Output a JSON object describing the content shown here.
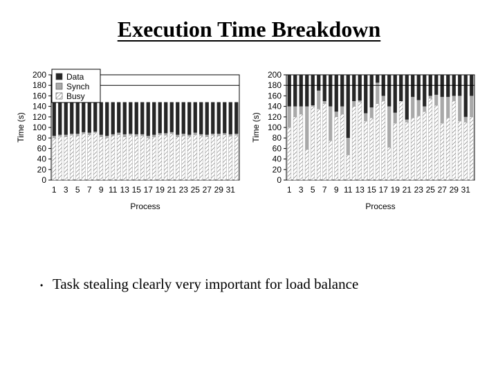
{
  "slide": {
    "title": "Execution Time Breakdown",
    "bullet": "Task stealing clearly very important for load balance",
    "bullet_marker": "•"
  },
  "chart_data": [
    {
      "type": "bar",
      "stacked": true,
      "ylabel": "Time (s)",
      "xlabel": "Process",
      "ylim": [
        0,
        200
      ],
      "yticks": [
        0,
        20,
        40,
        60,
        80,
        100,
        120,
        140,
        160,
        180,
        200
      ],
      "x_tick_labels": [
        "1",
        "3",
        "5",
        "7",
        "9",
        "11",
        "13",
        "15",
        "17",
        "19",
        "21",
        "23",
        "25",
        "27",
        "29",
        "31"
      ],
      "legend": [
        "Data",
        "Synch",
        "Busy"
      ],
      "legend_position": "top-left",
      "reference_line": 180,
      "categories": [
        0,
        1,
        2,
        3,
        4,
        5,
        6,
        7,
        8,
        9,
        10,
        11,
        12,
        13,
        14,
        15,
        16,
        17,
        18,
        19,
        20,
        21,
        22,
        23,
        24,
        25,
        26,
        27,
        28,
        29,
        30,
        31
      ],
      "series": [
        {
          "name": "Busy",
          "values": [
            80,
            83,
            82,
            85,
            84,
            88,
            86,
            90,
            82,
            80,
            84,
            86,
            82,
            85,
            83,
            84,
            80,
            82,
            86,
            85,
            88,
            82,
            84,
            83,
            86,
            84,
            82,
            85,
            84,
            86,
            83,
            85
          ]
        },
        {
          "name": "Synch",
          "values": [
            4,
            3,
            4,
            3,
            4,
            3,
            4,
            2,
            4,
            4,
            3,
            4,
            5,
            3,
            4,
            3,
            4,
            4,
            3,
            4,
            3,
            4,
            4,
            3,
            4,
            3,
            4,
            3,
            4,
            3,
            4,
            3
          ]
        },
        {
          "name": "Data",
          "values": [
            64,
            62,
            62,
            60,
            60,
            57,
            58,
            56,
            62,
            64,
            61,
            58,
            61,
            60,
            61,
            61,
            64,
            62,
            59,
            59,
            57,
            62,
            60,
            62,
            58,
            61,
            62,
            60,
            60,
            59,
            61,
            60
          ]
        }
      ]
    },
    {
      "type": "bar",
      "stacked": true,
      "ylabel": "Time (s)",
      "xlabel": "Process",
      "ylim": [
        0,
        200
      ],
      "yticks": [
        0,
        20,
        40,
        60,
        80,
        100,
        120,
        140,
        160,
        180,
        200
      ],
      "x_tick_labels": [
        "1",
        "3",
        "5",
        "7",
        "9",
        "11",
        "13",
        "15",
        "17",
        "19",
        "21",
        "23",
        "25",
        "27",
        "29",
        "31"
      ],
      "reference_line": 180,
      "categories": [
        0,
        1,
        2,
        3,
        4,
        5,
        6,
        7,
        8,
        9,
        10,
        11,
        12,
        13,
        14,
        15,
        16,
        17,
        18,
        19,
        20,
        21,
        22,
        23,
        24,
        25,
        26,
        27,
        28,
        29,
        30,
        31
      ],
      "series": [
        {
          "name": "Busy",
          "values": [
            100,
            120,
            125,
            58,
            140,
            135,
            145,
            75,
            120,
            125,
            48,
            140,
            148,
            112,
            118,
            145,
            150,
            62,
            108,
            150,
            110,
            118,
            122,
            130,
            155,
            142,
            108,
            118,
            150,
            112,
            110,
            120
          ]
        },
        {
          "name": "Synch",
          "values": [
            40,
            20,
            15,
            82,
            2,
            35,
            5,
            65,
            10,
            15,
            32,
            10,
            3,
            15,
            20,
            40,
            10,
            78,
            20,
            0,
            5,
            40,
            30,
            10,
            5,
            20,
            50,
            40,
            10,
            48,
            10,
            40
          ]
        },
        {
          "name": "Data",
          "values": [
            60,
            60,
            60,
            60,
            58,
            30,
            50,
            60,
            70,
            60,
            120,
            50,
            49,
            73,
            62,
            15,
            40,
            60,
            72,
            50,
            85,
            42,
            48,
            60,
            40,
            38,
            42,
            42,
            40,
            40,
            80,
            40
          ]
        }
      ]
    }
  ]
}
